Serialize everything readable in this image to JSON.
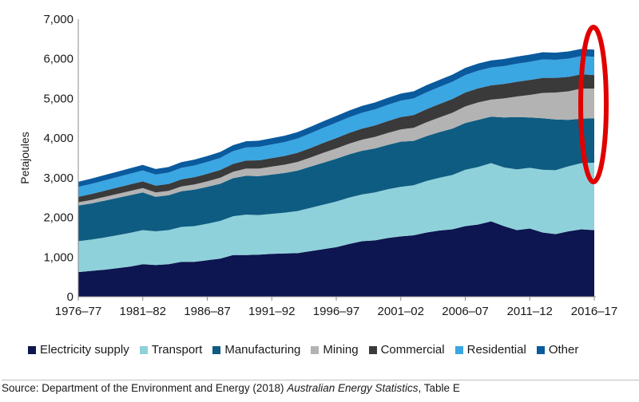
{
  "chart_data": {
    "type": "area",
    "stacked": true,
    "ylabel": "Petajoules",
    "ylim": [
      0,
      7000
    ],
    "y_ticks": [
      "0",
      "1,000",
      "2,000",
      "3,000",
      "4,000",
      "5,000",
      "6,000",
      "7,000"
    ],
    "x_tick_labels": [
      "1976–77",
      "1981–82",
      "1986–87",
      "1991–92",
      "1996–97",
      "2001–02",
      "2006–07",
      "2011–12",
      "2016–17"
    ],
    "x_tick_index": [
      0,
      5,
      10,
      15,
      20,
      25,
      30,
      35,
      40
    ],
    "x": [
      "1976–77",
      "1977–78",
      "1978–79",
      "1979–80",
      "1980–81",
      "1981–82",
      "1982–83",
      "1983–84",
      "1984–85",
      "1985–86",
      "1986–87",
      "1987–88",
      "1988–89",
      "1989–90",
      "1990–91",
      "1991–92",
      "1992–93",
      "1993–94",
      "1994–95",
      "1995–96",
      "1996–97",
      "1997–98",
      "1998–99",
      "1999–00",
      "2000–01",
      "2001–02",
      "2002–03",
      "2003–04",
      "2004–05",
      "2005–06",
      "2006–07",
      "2007–08",
      "2008–09",
      "2009–10",
      "2010–11",
      "2011–12",
      "2012–13",
      "2013–14",
      "2014–15",
      "2015–16",
      "2016–17"
    ],
    "series": [
      {
        "name": "Electricity supply",
        "color": "#0d1650",
        "values": [
          620,
          650,
          680,
          720,
          760,
          820,
          800,
          820,
          880,
          880,
          920,
          960,
          1050,
          1050,
          1060,
          1080,
          1090,
          1100,
          1150,
          1200,
          1250,
          1330,
          1400,
          1420,
          1480,
          1520,
          1550,
          1620,
          1670,
          1700,
          1780,
          1820,
          1900,
          1780,
          1680,
          1720,
          1620,
          1580,
          1650,
          1700,
          1680
        ]
      },
      {
        "name": "Transport",
        "color": "#8fd1da",
        "values": [
          780,
          790,
          810,
          830,
          850,
          860,
          850,
          860,
          880,
          900,
          920,
          950,
          980,
          1020,
          1000,
          1010,
          1030,
          1060,
          1090,
          1120,
          1150,
          1170,
          1180,
          1210,
          1230,
          1250,
          1260,
          1300,
          1330,
          1370,
          1420,
          1450,
          1470,
          1480,
          1530,
          1530,
          1580,
          1610,
          1640,
          1670,
          1700
        ]
      },
      {
        "name": "Manufacturing",
        "color": "#0f5c82",
        "values": [
          900,
          910,
          930,
          940,
          950,
          950,
          870,
          880,
          900,
          920,
          930,
          940,
          960,
          980,
          980,
          990,
          1000,
          1020,
          1040,
          1060,
          1080,
          1090,
          1100,
          1110,
          1120,
          1140,
          1120,
          1130,
          1150,
          1170,
          1180,
          1190,
          1170,
          1260,
          1320,
          1270,
          1300,
          1280,
          1170,
          1120,
          1120
        ]
      },
      {
        "name": "Mining",
        "color": "#b3b3b3",
        "values": [
          80,
          90,
          95,
          100,
          105,
          110,
          110,
          110,
          120,
          130,
          140,
          150,
          160,
          180,
          190,
          200,
          210,
          220,
          230,
          250,
          260,
          270,
          280,
          290,
          300,
          310,
          330,
          350,
          370,
          400,
          420,
          440,
          430,
          480,
          520,
          570,
          640,
          680,
          720,
          760,
          750
        ]
      },
      {
        "name": "Commercial",
        "color": "#3a3a3a",
        "values": [
          140,
          150,
          155,
          160,
          165,
          170,
          170,
          175,
          180,
          185,
          190,
          195,
          200,
          205,
          210,
          215,
          220,
          230,
          240,
          250,
          260,
          270,
          280,
          290,
          300,
          310,
          320,
          330,
          340,
          345,
          350,
          355,
          360,
          365,
          370,
          375,
          380,
          370,
          365,
          360,
          340
        ]
      },
      {
        "name": "Residential",
        "color": "#3aa6e2",
        "values": [
          250,
          255,
          260,
          265,
          270,
          275,
          280,
          285,
          290,
          295,
          300,
          305,
          320,
          330,
          340,
          345,
          350,
          360,
          370,
          380,
          390,
          395,
          400,
          405,
          410,
          415,
          420,
          425,
          430,
          435,
          440,
          445,
          450,
          450,
          455,
          460,
          465,
          455,
          460,
          460,
          460
        ]
      },
      {
        "name": "Other",
        "color": "#0a5a9e",
        "values": [
          130,
          132,
          134,
          136,
          138,
          140,
          140,
          142,
          144,
          146,
          148,
          150,
          152,
          154,
          156,
          158,
          160,
          162,
          164,
          166,
          168,
          170,
          172,
          174,
          176,
          178,
          180,
          180,
          180,
          180,
          180,
          180,
          180,
          180,
          180,
          180,
          180,
          180,
          180,
          180,
          180
        ]
      }
    ],
    "annotation": {
      "type": "ellipse",
      "color": "#e00000",
      "target_index": 40
    },
    "grid": false,
    "legend_position": "bottom"
  },
  "source": {
    "prefix": "Source: Department of the Environment and Energy (2018) ",
    "title": "Australian Energy Statistics",
    "suffix": ", Table E"
  }
}
